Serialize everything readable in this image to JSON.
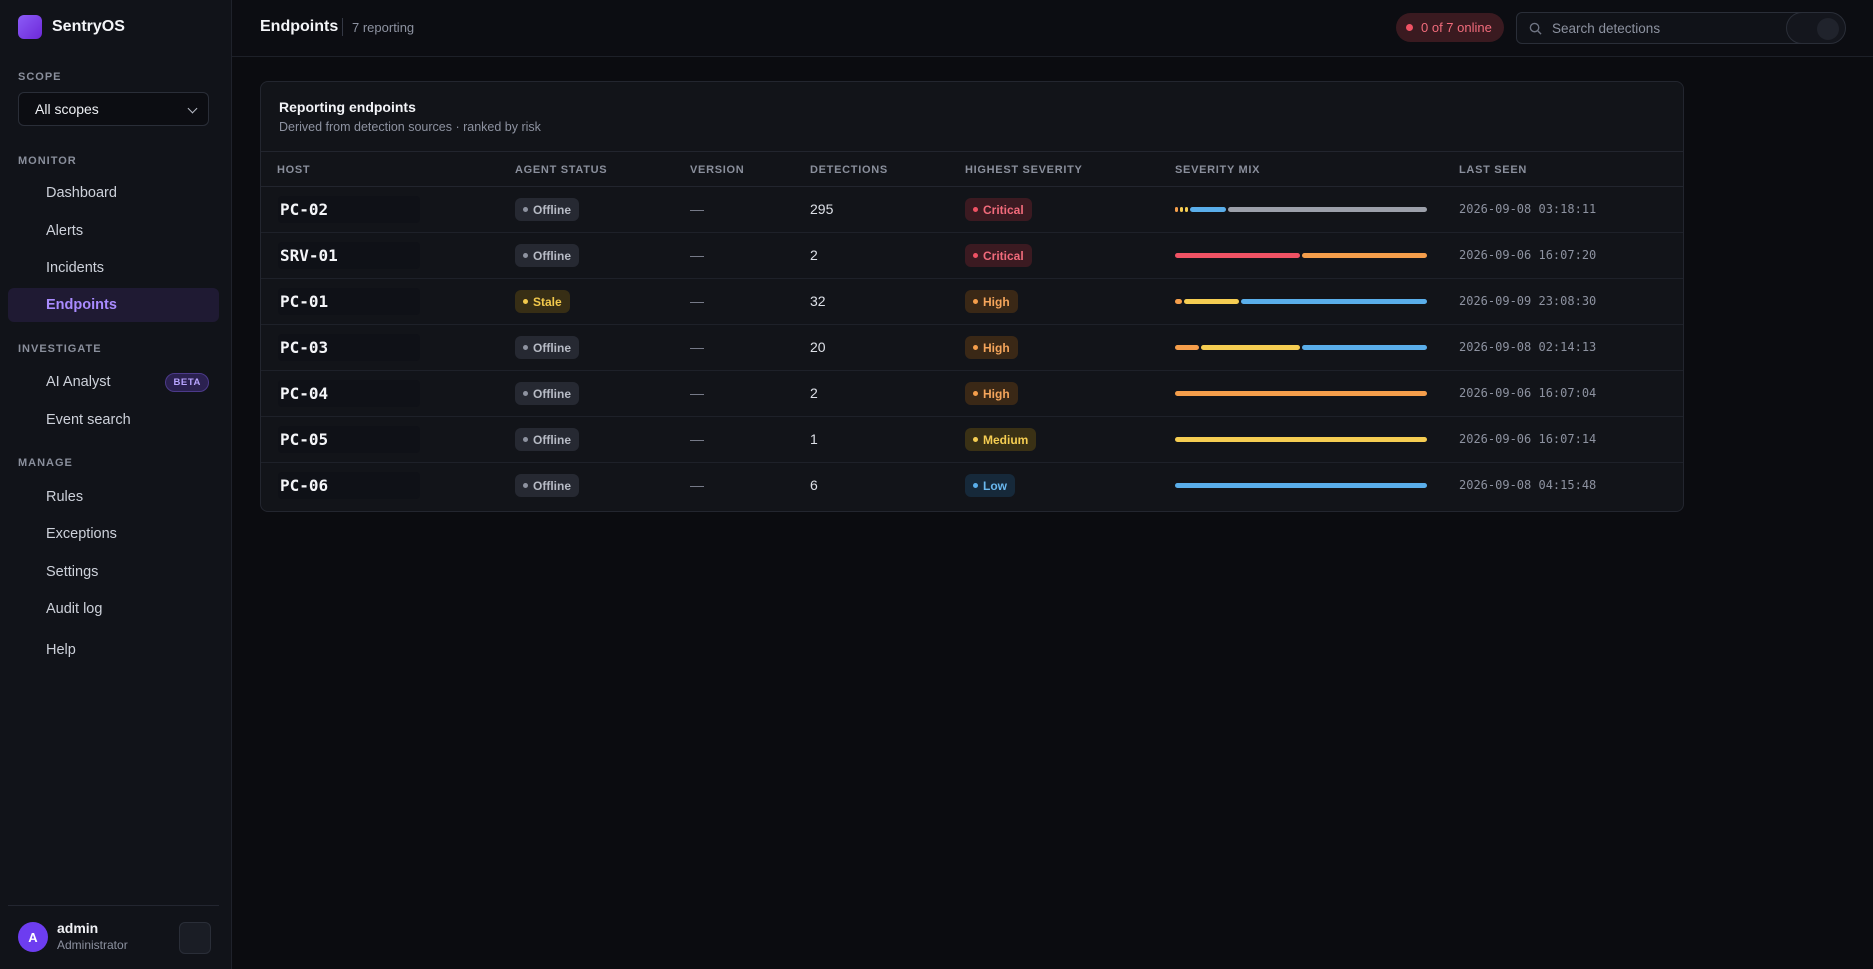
{
  "brand": {
    "name": "SentryOS"
  },
  "sidebar": {
    "scope_label": "SCOPE",
    "scope_value": "All scopes",
    "sections": {
      "monitor": "MONITOR",
      "investigate": "INVESTIGATE",
      "manage": "MANAGE"
    },
    "items": {
      "dashboard": "Dashboard",
      "alerts": "Alerts",
      "incidents": "Incidents",
      "endpoints": "Endpoints",
      "ai_analyst": "AI Analyst",
      "ai_analyst_badge": "BETA",
      "event_search": "Event search",
      "rules": "Rules",
      "exceptions": "Exceptions",
      "settings": "Settings",
      "audit_log": "Audit log",
      "help": "Help"
    },
    "active_item": "Endpoints"
  },
  "user": {
    "initial": "A",
    "name": "admin",
    "role": "Administrator"
  },
  "header": {
    "title": "Endpoints",
    "subtitle": "7 reporting",
    "online_status": "0 of 7 online",
    "search_placeholder": "Search detections"
  },
  "card": {
    "title": "Reporting endpoints",
    "subtitle": "Derived from detection sources · ranked by risk"
  },
  "table": {
    "columns": {
      "host": "HOST",
      "agent_status": "AGENT STATUS",
      "version": "VERSION",
      "detections": "DETECTIONS",
      "highest_severity": "HIGHEST SEVERITY",
      "severity_mix": "SEVERITY MIX",
      "last_seen": "LAST SEEN"
    },
    "rows": [
      {
        "host": "PC-02",
        "status": "Offline",
        "version": "—",
        "detections": "295",
        "severity": "Critical",
        "last_seen": "2026-09-08 03:18:11"
      },
      {
        "host": "SRV-01",
        "status": "Offline",
        "version": "—",
        "detections": "2",
        "severity": "Critical",
        "last_seen": "2026-09-06 16:07:20"
      },
      {
        "host": "PC-01",
        "status": "Stale",
        "version": "—",
        "detections": "32",
        "severity": "High",
        "last_seen": "2026-09-09 23:08:30"
      },
      {
        "host": "PC-03",
        "status": "Offline",
        "version": "—",
        "detections": "20",
        "severity": "High",
        "last_seen": "2026-09-08 02:14:13"
      },
      {
        "host": "PC-04",
        "status": "Offline",
        "version": "—",
        "detections": "2",
        "severity": "High",
        "last_seen": "2026-09-06 16:07:04"
      },
      {
        "host": "PC-05",
        "status": "Offline",
        "version": "—",
        "detections": "1",
        "severity": "Medium",
        "last_seen": "2026-09-06 16:07:14"
      },
      {
        "host": "PC-06",
        "status": "Offline",
        "version": "—",
        "detections": "6",
        "severity": "Low",
        "last_seen": "2026-09-08 04:15:48"
      }
    ]
  },
  "colors": {
    "accent": "#8b5cf6",
    "critical": "#f05264",
    "high": "#f59e4b",
    "medium": "#f5cd52",
    "low": "#5aaeea",
    "info": "#9ca0aa"
  }
}
